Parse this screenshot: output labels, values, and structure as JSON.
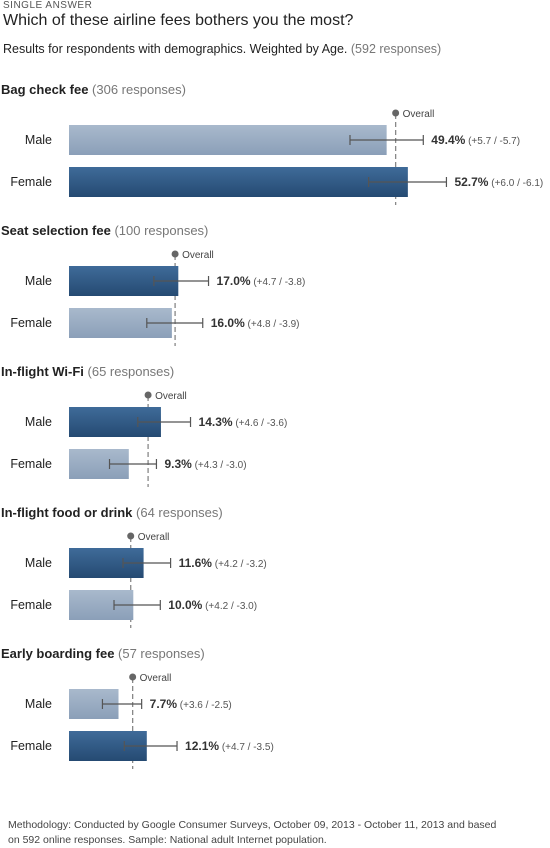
{
  "header": {
    "label": "SINGLE ANSWER",
    "question": "Which of these airline fees bothers you the most?",
    "subtitle_main": "Results for respondents with demographics. Weighted by Age.",
    "subtitle_count": "(592 responses)"
  },
  "overall_label": "Overall",
  "footer": {
    "methodology": "Methodology: Conducted by Google Consumer Surveys, October 09, 2013 - October 11, 2013 and based on 592 online responses. Sample: National adult Internet population."
  },
  "colors": {
    "dark": "#2e5680",
    "light": "#97a9bf",
    "errorbar": "#555555",
    "overall": "#888888",
    "overall_dot": "#666666"
  },
  "chart_data": {
    "type": "bar",
    "orientation": "horizontal",
    "unit": "%",
    "groups": [
      {
        "name": "Bag check fee",
        "count": "(306 responses)",
        "overall": 50.8,
        "bars": [
          {
            "label": "Male",
            "value": 49.4,
            "value_text": "49.4%",
            "ci_text": "(+5.7 / -5.7)",
            "plus": 5.7,
            "minus": 5.7,
            "highlight": false
          },
          {
            "label": "Female",
            "value": 52.7,
            "value_text": "52.7%",
            "ci_text": "(+6.0 / -6.1)",
            "plus": 6.0,
            "minus": 6.1,
            "highlight": true
          }
        ]
      },
      {
        "name": "Seat selection fee",
        "count": "(100 responses)",
        "overall": 16.5,
        "bars": [
          {
            "label": "Male",
            "value": 17.0,
            "value_text": "17.0%",
            "ci_text": "(+4.7 / -3.8)",
            "plus": 4.7,
            "minus": 3.8,
            "highlight": true
          },
          {
            "label": "Female",
            "value": 16.0,
            "value_text": "16.0%",
            "ci_text": "(+4.8 / -3.9)",
            "plus": 4.8,
            "minus": 3.9,
            "highlight": false
          }
        ]
      },
      {
        "name": "In-flight Wi-Fi",
        "count": "(65 responses)",
        "overall": 12.3,
        "bars": [
          {
            "label": "Male",
            "value": 14.3,
            "value_text": "14.3%",
            "ci_text": "(+4.6 / -3.6)",
            "plus": 4.6,
            "minus": 3.6,
            "highlight": true
          },
          {
            "label": "Female",
            "value": 9.3,
            "value_text": "9.3%",
            "ci_text": "(+4.3 / -3.0)",
            "plus": 4.3,
            "minus": 3.0,
            "highlight": false
          }
        ]
      },
      {
        "name": "In-flight food or drink",
        "count": "(64 responses)",
        "overall": 9.6,
        "bars": [
          {
            "label": "Male",
            "value": 11.6,
            "value_text": "11.6%",
            "ci_text": "(+4.2 / -3.2)",
            "plus": 4.2,
            "minus": 3.2,
            "highlight": true
          },
          {
            "label": "Female",
            "value": 10.0,
            "value_text": "10.0%",
            "ci_text": "(+4.2 / -3.0)",
            "plus": 4.2,
            "minus": 3.0,
            "highlight": false
          }
        ]
      },
      {
        "name": "Early boarding fee",
        "count": "(57 responses)",
        "overall": 9.9,
        "bars": [
          {
            "label": "Male",
            "value": 7.7,
            "value_text": "7.7%",
            "ci_text": "(+3.6 / -2.5)",
            "plus": 3.6,
            "minus": 2.5,
            "highlight": false
          },
          {
            "label": "Female",
            "value": 12.1,
            "value_text": "12.1%",
            "ci_text": "(+4.7 / -3.5)",
            "plus": 4.7,
            "minus": 3.5,
            "highlight": true
          }
        ]
      }
    ]
  }
}
